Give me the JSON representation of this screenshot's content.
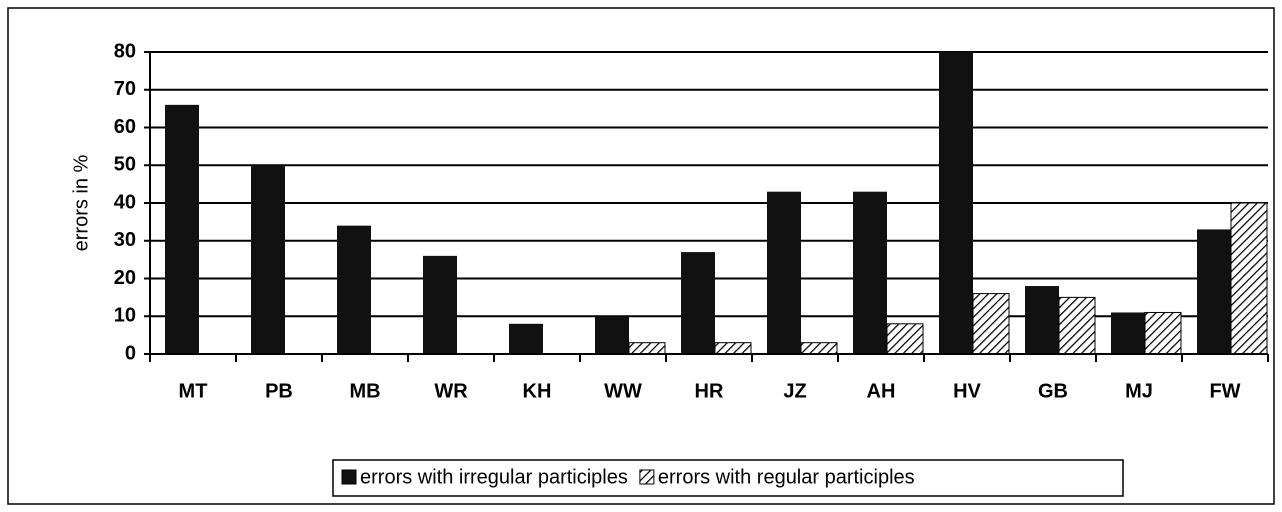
{
  "chart_data": {
    "type": "bar",
    "y_label": "errors in %",
    "categories": [
      "MT",
      "PB",
      "MB",
      "WR",
      "KH",
      "WW",
      "HR",
      "JZ",
      "AH",
      "HV",
      "GB",
      "MJ",
      "FW"
    ],
    "series": [
      {
        "name": "errors with irregular participles",
        "color": "#111111",
        "values": [
          66,
          50,
          34,
          26,
          8,
          10,
          27,
          43,
          43,
          80,
          18,
          11,
          33
        ]
      },
      {
        "name": "errors with regular participles",
        "color": "hatch",
        "values": [
          0,
          0,
          0,
          0,
          0,
          3,
          3,
          3,
          8,
          16,
          15,
          11,
          40
        ]
      }
    ],
    "ylim": [
      0,
      80
    ],
    "yticks": [
      0,
      10,
      20,
      30,
      40,
      50,
      60,
      70,
      80
    ],
    "grid": true,
    "legend": "bottom"
  }
}
